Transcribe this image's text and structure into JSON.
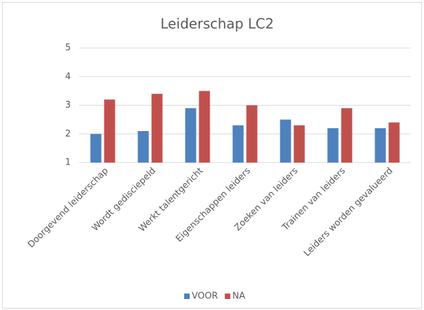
{
  "chart_data": {
    "type": "bar",
    "title": "Leiderschap LC2",
    "categories": [
      "Doorgevend leiderschap",
      "Wordt gedisciepeld",
      "Werkt talentgericht",
      "Eigenschappen leiders",
      "Zoeken van leiders",
      "Trainen van leiders",
      "Leiders worden gevalueerd"
    ],
    "series": [
      {
        "name": "VOOR",
        "color": "#4f81bd",
        "values": [
          2.0,
          2.1,
          2.9,
          2.3,
          2.5,
          2.2,
          2.2
        ]
      },
      {
        "name": "NA",
        "color": "#c0504d",
        "values": [
          3.2,
          3.4,
          3.5,
          3.0,
          2.3,
          2.9,
          2.4
        ]
      }
    ],
    "ylim": [
      1,
      5
    ],
    "yticks": [
      1,
      2,
      3,
      4,
      5
    ],
    "grid": true,
    "legend": "bottom"
  }
}
